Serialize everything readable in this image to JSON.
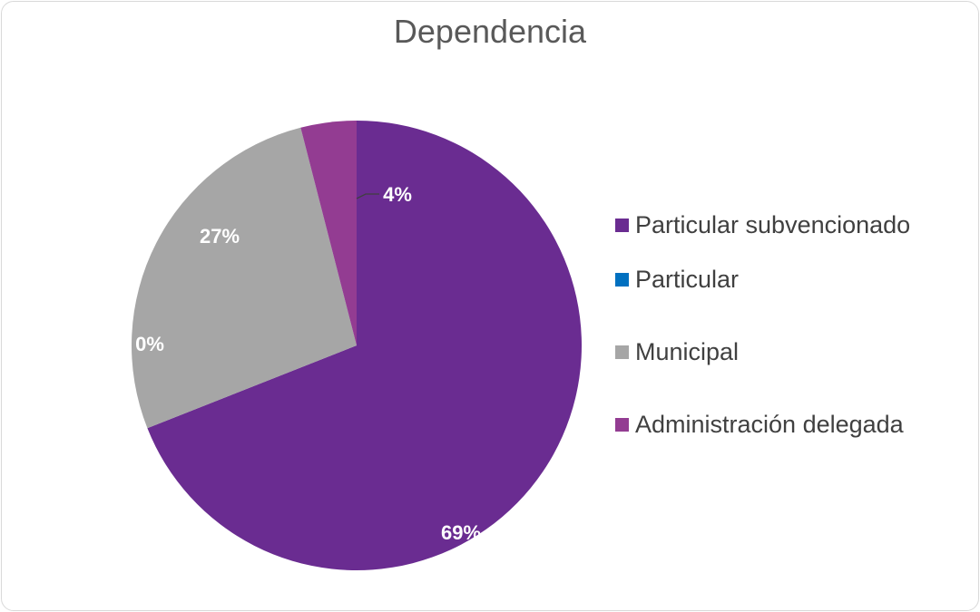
{
  "chart_data": {
    "type": "pie",
    "title": "Dependencia",
    "categories": [
      "Particular subvencionado",
      "Particular",
      "Municipal",
      "Administración delegada"
    ],
    "values": [
      69,
      0,
      27,
      4
    ],
    "data_labels": [
      "69%",
      "0%",
      "27%",
      "4%"
    ],
    "colors": [
      "#6a2c91",
      "#0070c0",
      "#a6a6a6",
      "#933c92"
    ],
    "legend_position": "right"
  }
}
